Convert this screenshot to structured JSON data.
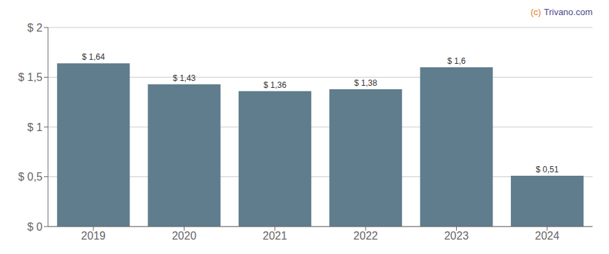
{
  "chart_data": {
    "type": "bar",
    "categories": [
      "2019",
      "2020",
      "2021",
      "2022",
      "2023",
      "2024"
    ],
    "values": [
      1.64,
      1.43,
      1.36,
      1.38,
      1.6,
      0.51
    ],
    "value_labels": [
      "$ 1,64",
      "$ 1,43",
      "$ 1,36",
      "$ 1,38",
      "$ 1,6",
      "$ 0,51"
    ],
    "data_labels": true,
    "color": "#5f7d8c",
    "ylim": [
      0,
      2.0
    ],
    "yticks": [
      {
        "value": 0,
        "label": "$ 0"
      },
      {
        "value": 0.5,
        "label": "$ 0,5"
      },
      {
        "value": 1.0,
        "label": "$ 1"
      },
      {
        "value": 1.5,
        "label": "$ 1,5"
      },
      {
        "value": 2.0,
        "label": "$ 2"
      }
    ],
    "grid": true,
    "annotations": [
      {
        "text": "(c)",
        "color": "#e07828"
      },
      {
        "text": "Trivano.com",
        "color": "#4a4a8a"
      }
    ]
  }
}
